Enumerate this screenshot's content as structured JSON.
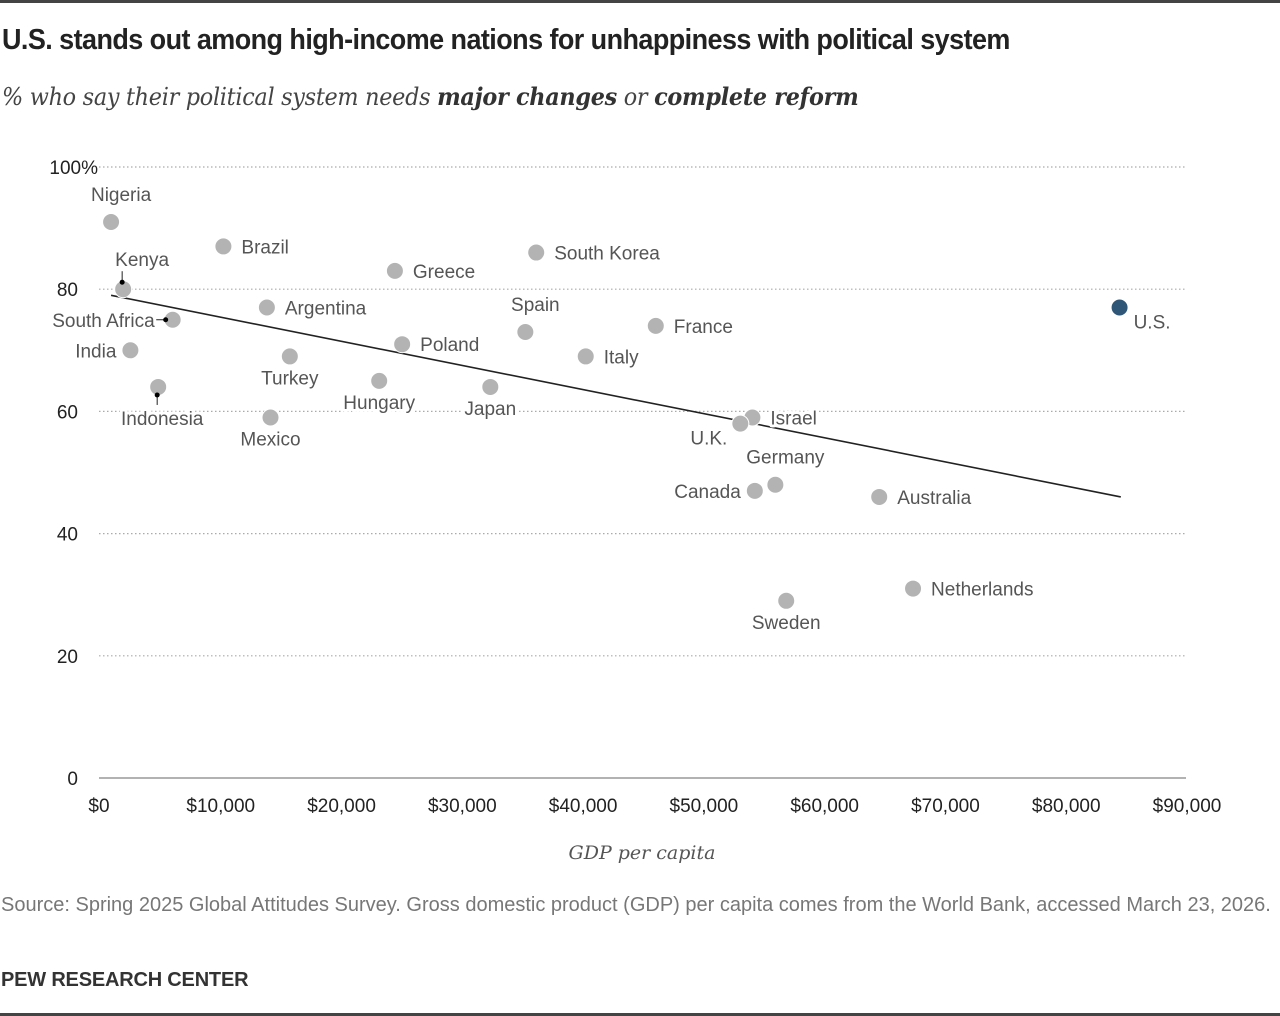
{
  "header": {
    "title": "U.S. stands out among high-income nations for unhappiness with political system",
    "subtitle_prefix": "% who say their political system needs ",
    "subtitle_bold1": "major changes",
    "subtitle_mid": " or ",
    "subtitle_bold2": "complete reform"
  },
  "footer": {
    "source": "Source: Spring 2025 Global Attitudes Survey. Gross domestic product (GDP) per capita comes from the World Bank, accessed March 23, 2026.",
    "brand": "PEW RESEARCH CENTER"
  },
  "colors": {
    "point": "#b3b3b3",
    "highlight": "#2f5677",
    "trend": "#222222",
    "grid": "#aaaaaa"
  },
  "chart_data": {
    "type": "scatter",
    "title": "U.S. stands out among high-income nations for unhappiness with political system",
    "subtitle": "% who say their political system needs major changes or complete reform",
    "xlabel": "GDP per capita",
    "ylabel": "",
    "xlim": [
      0,
      90000
    ],
    "ylim": [
      0,
      100
    ],
    "grid": true,
    "x_ticks": [
      0,
      10000,
      20000,
      30000,
      40000,
      50000,
      60000,
      70000,
      80000,
      90000
    ],
    "x_tick_labels": [
      "$0",
      "$10,000",
      "$20,000",
      "$30,000",
      "$40,000",
      "$50,000",
      "$60,000",
      "$70,000",
      "$80,000",
      "$90,000"
    ],
    "y_ticks": [
      0,
      20,
      40,
      60,
      80,
      100
    ],
    "y_tick_labels": [
      "0",
      "20",
      "40",
      "60",
      "80",
      "100%"
    ],
    "points": [
      {
        "country": "Nigeria",
        "gdp": 1000,
        "pct": 91,
        "label_pos": "above"
      },
      {
        "country": "Brazil",
        "gdp": 10300,
        "pct": 87,
        "label_pos": "right"
      },
      {
        "country": "Kenya",
        "gdp": 2000,
        "pct": 80,
        "label_pos": "above-leader"
      },
      {
        "country": "South Africa",
        "gdp": 6100,
        "pct": 75,
        "label_pos": "left-leader"
      },
      {
        "country": "India",
        "gdp": 2600,
        "pct": 70,
        "label_pos": "left"
      },
      {
        "country": "Indonesia",
        "gdp": 4900,
        "pct": 64,
        "label_pos": "below-leader"
      },
      {
        "country": "Argentina",
        "gdp": 13900,
        "pct": 77,
        "label_pos": "right"
      },
      {
        "country": "Turkey",
        "gdp": 15800,
        "pct": 69,
        "label_pos": "below"
      },
      {
        "country": "Mexico",
        "gdp": 14200,
        "pct": 59,
        "label_pos": "below"
      },
      {
        "country": "Greece",
        "gdp": 24500,
        "pct": 83,
        "label_pos": "right"
      },
      {
        "country": "Poland",
        "gdp": 25100,
        "pct": 71,
        "label_pos": "right"
      },
      {
        "country": "Hungary",
        "gdp": 23200,
        "pct": 65,
        "label_pos": "below"
      },
      {
        "country": "Japan",
        "gdp": 32400,
        "pct": 64,
        "label_pos": "below"
      },
      {
        "country": "Spain",
        "gdp": 35300,
        "pct": 73,
        "label_pos": "above"
      },
      {
        "country": "South Korea",
        "gdp": 36200,
        "pct": 86,
        "label_pos": "right"
      },
      {
        "country": "Italy",
        "gdp": 40300,
        "pct": 69,
        "label_pos": "right"
      },
      {
        "country": "France",
        "gdp": 46100,
        "pct": 74,
        "label_pos": "right"
      },
      {
        "country": "Israel",
        "gdp": 54100,
        "pct": 59,
        "label_pos": "right"
      },
      {
        "country": "U.K.",
        "gdp": 53100,
        "pct": 58,
        "label_pos": "below-left"
      },
      {
        "country": "Canada",
        "gdp": 54300,
        "pct": 47,
        "label_pos": "left"
      },
      {
        "country": "Germany",
        "gdp": 56000,
        "pct": 48,
        "label_pos": "above"
      },
      {
        "country": "Australia",
        "gdp": 64600,
        "pct": 46,
        "label_pos": "right"
      },
      {
        "country": "Sweden",
        "gdp": 56900,
        "pct": 29,
        "label_pos": "below"
      },
      {
        "country": "Netherlands",
        "gdp": 67400,
        "pct": 31,
        "label_pos": "right"
      },
      {
        "country": "U.S.",
        "gdp": 84500,
        "pct": 77,
        "label_pos": "below-right",
        "highlight": true
      }
    ],
    "trend_line": {
      "x": [
        1000,
        84600
      ],
      "y": [
        79,
        46
      ]
    }
  }
}
